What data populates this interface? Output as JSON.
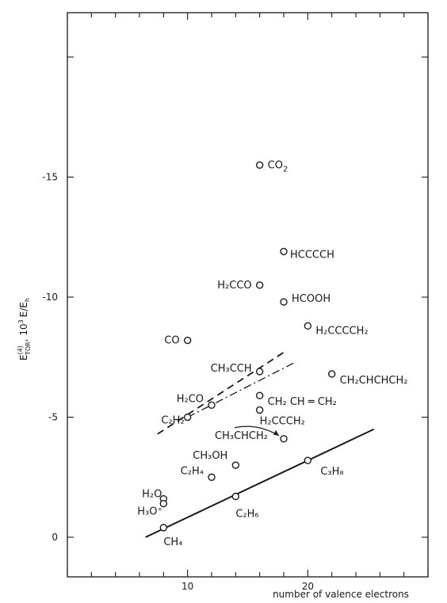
{
  "chart_data": {
    "type": "scatter",
    "title": "",
    "xlabel": "number of valence electrons",
    "ylabel": "E(4)TOR , 10³ E/Eh",
    "ylabel_parts": {
      "main": "E",
      "sup": "(4)",
      "sub": "TOR",
      "rest": ", 10",
      "exp": "3",
      "unit": "E/E",
      "unit_sub": "h"
    },
    "xlim": [
      0,
      30
    ],
    "ylim": [
      0,
      -20
    ],
    "xticks_labeled": [
      10,
      20
    ],
    "xtick_labels": [
      "10",
      "20"
    ],
    "yticks_labeled": [
      0,
      -5,
      -10,
      -15
    ],
    "ytick_labels": [
      "0",
      "-5",
      "-10",
      "-15"
    ],
    "grid": false,
    "points": [
      {
        "name": "CO2",
        "label": "CO",
        "label_sub": "2",
        "x": 16,
        "y": -15.5
      },
      {
        "name": "HCCCCH",
        "label": "HCCCCH",
        "label_sub": "",
        "x": 18,
        "y": -11.9
      },
      {
        "name": "H2CCO",
        "label": "H₂CCO",
        "label_sub": "",
        "x": 16,
        "y": -10.5
      },
      {
        "name": "HCOOH",
        "label": "HCOOH",
        "label_sub": "",
        "x": 18,
        "y": -9.8
      },
      {
        "name": "H2CCCCH2",
        "label": "H₂CCCCH₂",
        "label_sub": "",
        "x": 20,
        "y": -8.8
      },
      {
        "name": "CO",
        "label": "CO",
        "label_sub": "",
        "x": 10,
        "y": -8.2
      },
      {
        "name": "CH3CCH",
        "label": "CH₃CCH",
        "label_sub": "",
        "x": 16,
        "y": -6.9
      },
      {
        "name": "CH2CHCHCH2",
        "label": "CH₂CHCHCH₂",
        "label_sub": "",
        "x": 22,
        "y": -6.8
      },
      {
        "name": "CH=CH2 cyclic",
        "label": "CH₂ CH ═ CH₂",
        "label_sub": "",
        "x": 16,
        "y": -5.9
      },
      {
        "name": "H2CO",
        "label": "H₂CO",
        "label_sub": "",
        "x": 12,
        "y": -5.5
      },
      {
        "name": "C2H2",
        "label": "C₂H₂",
        "label_sub": "",
        "x": 10,
        "y": -5.0
      },
      {
        "name": "H2CCCH2",
        "label": "H₂CCCH₂",
        "label_sub": "",
        "x": 16,
        "y": -5.3
      },
      {
        "name": "CH3CHCH2",
        "label": "CH₃CHCH₂",
        "label_sub": "",
        "x": 18,
        "y": -4.1
      },
      {
        "name": "CH3OH",
        "label": "CH₃OH",
        "label_sub": "",
        "x": 14,
        "y": -3.0
      },
      {
        "name": "C3H8",
        "label": "C₃H₈",
        "label_sub": "",
        "x": 20,
        "y": -3.2
      },
      {
        "name": "C2H4",
        "label": "C₂H₄",
        "label_sub": "",
        "x": 12,
        "y": -2.5
      },
      {
        "name": "C2H6",
        "label": "C₂H₆",
        "label_sub": "",
        "x": 14,
        "y": -1.7
      },
      {
        "name": "H2O",
        "label": "H₂O",
        "label_sub": "",
        "x": 8,
        "y": -1.6
      },
      {
        "name": "H3O+",
        "label": "H₃O⁺",
        "label_sub": "",
        "x": 8,
        "y": -1.4
      },
      {
        "name": "CH4",
        "label": "CH₄",
        "label_sub": "",
        "x": 8,
        "y": -0.4
      }
    ],
    "lines": [
      {
        "name": "solid-fit",
        "style": "solid",
        "x": [
          6.5,
          25.5
        ],
        "y": [
          0.0,
          -4.5
        ]
      },
      {
        "name": "dashed-fit",
        "style": "dashed",
        "x": [
          7.5,
          18
        ],
        "y": [
          -4.3,
          -7.7
        ]
      },
      {
        "name": "dashdot-fit",
        "style": "dashdot",
        "x": [
          10,
          19
        ],
        "y": [
          -5.0,
          -7.3
        ]
      }
    ],
    "annotation_arrow": {
      "from_label": "CH3CHCH2",
      "to_point": "CH3CHCH2"
    }
  }
}
